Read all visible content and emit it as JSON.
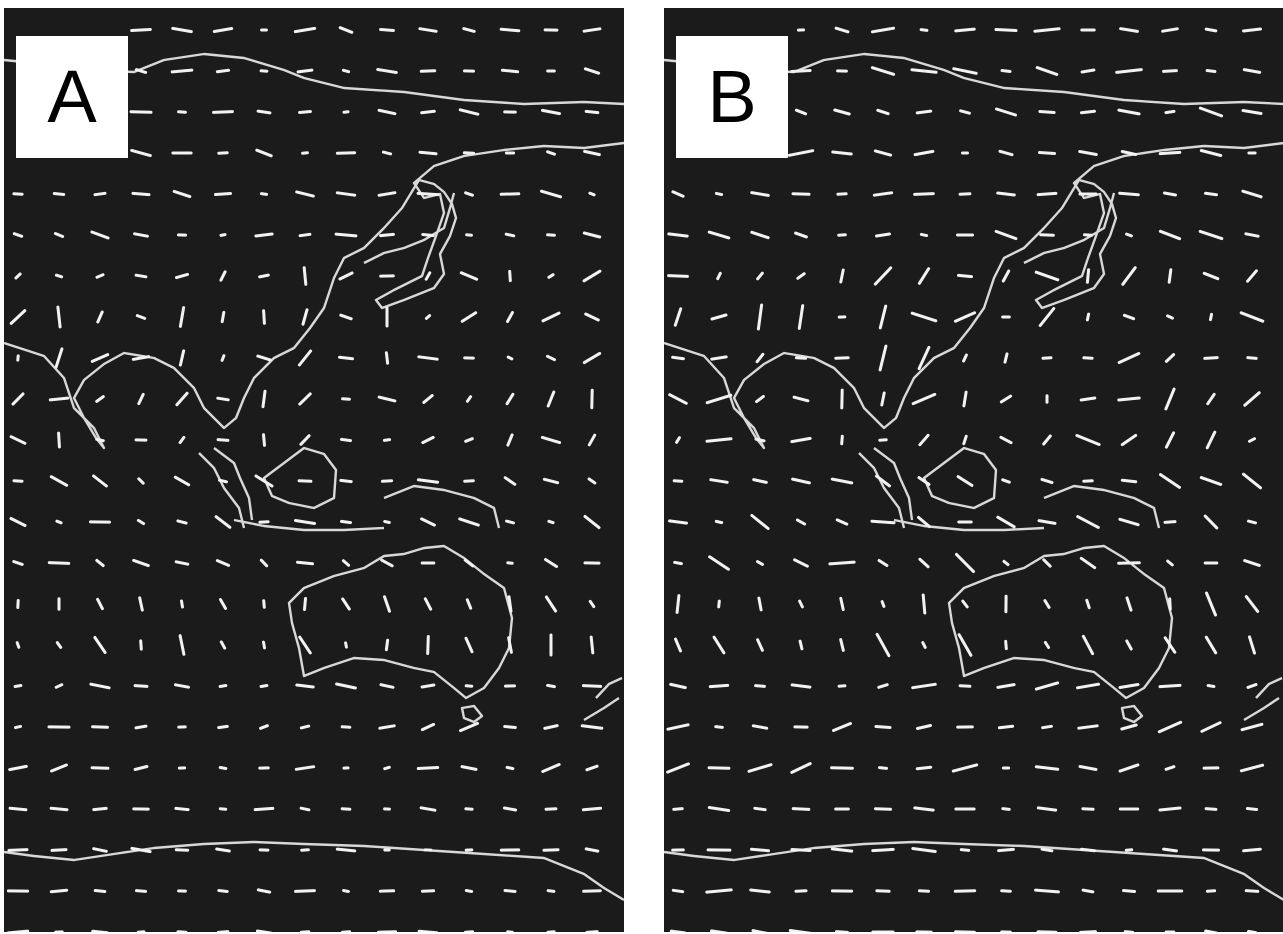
{
  "panels": [
    {
      "label": "A",
      "seed": 7,
      "strength": 1.0
    },
    {
      "label": "B",
      "seed": 19,
      "strength": 1.25
    }
  ],
  "colors": {
    "background": "#1b1b1b",
    "coastline": "#d8d8d8",
    "vectors": "#f2f2f2",
    "label_box": "#ffffff"
  }
}
